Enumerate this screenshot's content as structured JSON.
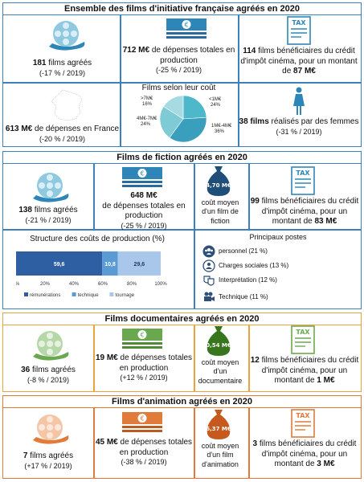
{
  "colors": {
    "blue": "#3d80c0",
    "teal": "#3a9fbd",
    "green": "#6aa84f",
    "orange": "#e07b39",
    "pie": [
      "#4db8c9",
      "#3a9fbd",
      "#7ecbd6",
      "#a6dbe3"
    ],
    "stack": [
      "#2e5fa3",
      "#5b9bd5",
      "#a9c7ea"
    ]
  },
  "section1": {
    "title": "Ensemble des films d'initiative française agréés en 2020",
    "films": {
      "value": "181",
      "label": " films agréés",
      "change": "(-17 % / 2019)"
    },
    "depenses": {
      "value": "712 M€",
      "label": " de dépenses totales en production",
      "change": "(-25 % / 2019)"
    },
    "credit": {
      "value": "114",
      "label1": " films bénéficiaires du crédit d'impôt cinéma, pour un montant de ",
      "amount": "87 M€"
    },
    "france": {
      "value": "613 M€",
      "label": " de dépenses en France",
      "change": "(-20 % / 2019)"
    },
    "pie_title": "Films selon leur coût",
    "femmes": {
      "value": "38 films",
      "label": " réalisés par des femmes",
      "change": "(-31 % / 2019)"
    }
  },
  "section2": {
    "title": "Films de fiction agréés en 2020",
    "films": {
      "value": "138",
      "label": " films agréés",
      "change": "(-21 % / 2019)"
    },
    "depenses": {
      "value": "648 M€",
      "label": "de dépenses totales en production",
      "change": "(-25 % / 2019)"
    },
    "cout": {
      "bag": "4,70 M€",
      "label": "coût moyen d'un film de fiction"
    },
    "credit": {
      "value": "99",
      "label1": " films bénéficiaires du crédit d'impôt cinéma, pour un montant de ",
      "amount": "83 M€"
    },
    "structure_title": "Structure des coûts de production (%)",
    "postes_title": "Principaux postes",
    "postes": [
      {
        "icon": "people-icon",
        "label": "personnel (21 %)"
      },
      {
        "icon": "social-charges-icon",
        "label": "Charges sociales (13 %)"
      },
      {
        "icon": "theater-masks-icon",
        "label": "Interprétation (12 %)"
      },
      {
        "icon": "camera-icon",
        "label": "Technique (11 %)"
      }
    ]
  },
  "section3": {
    "title": "Films documentaires agréés en 2020",
    "films": {
      "value": "36",
      "label": " films agréés",
      "change": "(-8 % / 2019)"
    },
    "depenses": {
      "value": "19 M€",
      "label": " de dépenses totales en production",
      "change": "(+12 % / 2019)"
    },
    "cout": {
      "bag": "0,54 M€",
      "label": "coût moyen d'un documentaire"
    },
    "credit": {
      "value": "12",
      "label1": " films bénéficiaires du crédit d'impôt cinéma, pour un montant de ",
      "amount": "1 M€"
    }
  },
  "section4": {
    "title": "Films d'animation agréés en 2020",
    "films": {
      "value": "7",
      "label": " films agréés",
      "change": "(+17 % / 2019)"
    },
    "depenses": {
      "value": "45 M€",
      "label": " de dépenses totales en production",
      "change": "(-38 % / 2019)"
    },
    "cout": {
      "bag": "6,37 M€",
      "label": "coût moyen d'un film d'animation"
    },
    "credit": {
      "value": "3",
      "label1": " films bénéficiaires du crédit d'impôt cinéma, pour un montant de ",
      "amount": "3 M€"
    }
  },
  "tax_label": "TAX",
  "chart_data": [
    {
      "type": "pie",
      "title": "Films selon leur coût",
      "categories": [
        "<1M€",
        "1M€-4M€",
        "4M€-7M€",
        ">7M€"
      ],
      "values": [
        24,
        36,
        24,
        16
      ]
    },
    {
      "type": "bar",
      "title": "Structure des coûts de production (%)",
      "stacked": true,
      "orientation": "horizontal",
      "series": [
        {
          "name": "rémunérations",
          "values": [
            59.6
          ]
        },
        {
          "name": "technique",
          "values": [
            10.8
          ]
        },
        {
          "name": "tournage",
          "values": [
            29.6
          ]
        }
      ],
      "value_labels": [
        "59,6",
        "10,8",
        "29,6"
      ],
      "xlim": [
        0,
        100
      ],
      "xticks": [
        "0%",
        "20%",
        "40%",
        "60%",
        "80%",
        "100%"
      ]
    }
  ]
}
